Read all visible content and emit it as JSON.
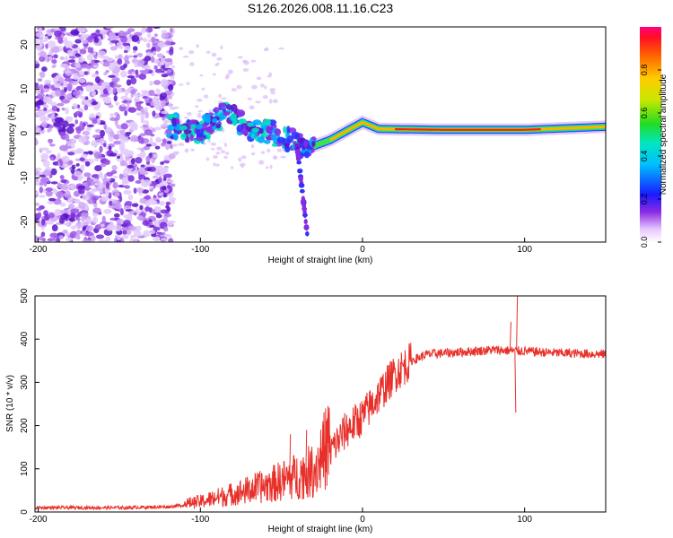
{
  "title": "S126.2026.008.11.16.C23",
  "chart_data": [
    {
      "type": "heatmap",
      "panel": "top",
      "xlabel": "Height of straight line (km)",
      "ylabel": "Frequency (Hz)",
      "xlim": [
        -202,
        150
      ],
      "ylim": [
        -24.5,
        24
      ],
      "xticks": [
        -200,
        -100,
        0,
        100
      ],
      "yticks": [
        -20,
        -10,
        0,
        10,
        20
      ],
      "colorbar": {
        "label": "Normalized spectral amplitude",
        "range": [
          0,
          1
        ],
        "ticks": [
          "0.0",
          "0.2",
          "0.4",
          "0.6",
          "0.8"
        ]
      },
      "description_ridge": [
        {
          "x": -115,
          "f": 1.0
        },
        {
          "x": -100,
          "f": 0.5
        },
        {
          "x": -85,
          "f": 4.5
        },
        {
          "x": -70,
          "f": 1.5
        },
        {
          "x": -55,
          "f": 0.0
        },
        {
          "x": -45,
          "f": -1.5
        },
        {
          "x": -35,
          "f": -3.5
        },
        {
          "x": -20,
          "f": -1.5
        },
        {
          "x": -10,
          "f": 0.5
        },
        {
          "x": 0,
          "f": 2.5
        },
        {
          "x": 10,
          "f": 1.0
        },
        {
          "x": 50,
          "f": 0.8
        },
        {
          "x": 100,
          "f": 0.8
        },
        {
          "x": 150,
          "f": 1.5
        }
      ]
    },
    {
      "type": "line",
      "panel": "bottom",
      "xlabel": "Height of straight line (km)",
      "ylabel": "SNR (10 * v/v)",
      "xlim": [
        -202,
        150
      ],
      "ylim": [
        0,
        500
      ],
      "xticks": [
        -200,
        -100,
        0,
        100
      ],
      "yticks": [
        0,
        100,
        200,
        300,
        400,
        500
      ],
      "color": "#e8302a",
      "trend": [
        {
          "x": -202,
          "snr": 10
        },
        {
          "x": -150,
          "snr": 10
        },
        {
          "x": -120,
          "snr": 12
        },
        {
          "x": -100,
          "snr": 20
        },
        {
          "x": -80,
          "snr": 35
        },
        {
          "x": -60,
          "snr": 50
        },
        {
          "x": -40,
          "snr": 70
        },
        {
          "x": -30,
          "snr": 80
        },
        {
          "x": -20,
          "snr": 140
        },
        {
          "x": -10,
          "snr": 190
        },
        {
          "x": 0,
          "snr": 220
        },
        {
          "x": 10,
          "snr": 270
        },
        {
          "x": 20,
          "snr": 320
        },
        {
          "x": 30,
          "snr": 350
        },
        {
          "x": 40,
          "snr": 365
        },
        {
          "x": 60,
          "snr": 370
        },
        {
          "x": 80,
          "snr": 375
        },
        {
          "x": 100,
          "snr": 372
        },
        {
          "x": 120,
          "snr": 368
        },
        {
          "x": 150,
          "snr": 365
        }
      ],
      "spikes": [
        {
          "x": 95,
          "snr": 500
        },
        {
          "x": 94,
          "snr": 230
        },
        {
          "x": 91,
          "snr": 440
        },
        {
          "x": -45,
          "snr": 180
        },
        {
          "x": -35,
          "snr": 190
        },
        {
          "x": -25,
          "snr": 210
        }
      ]
    }
  ]
}
